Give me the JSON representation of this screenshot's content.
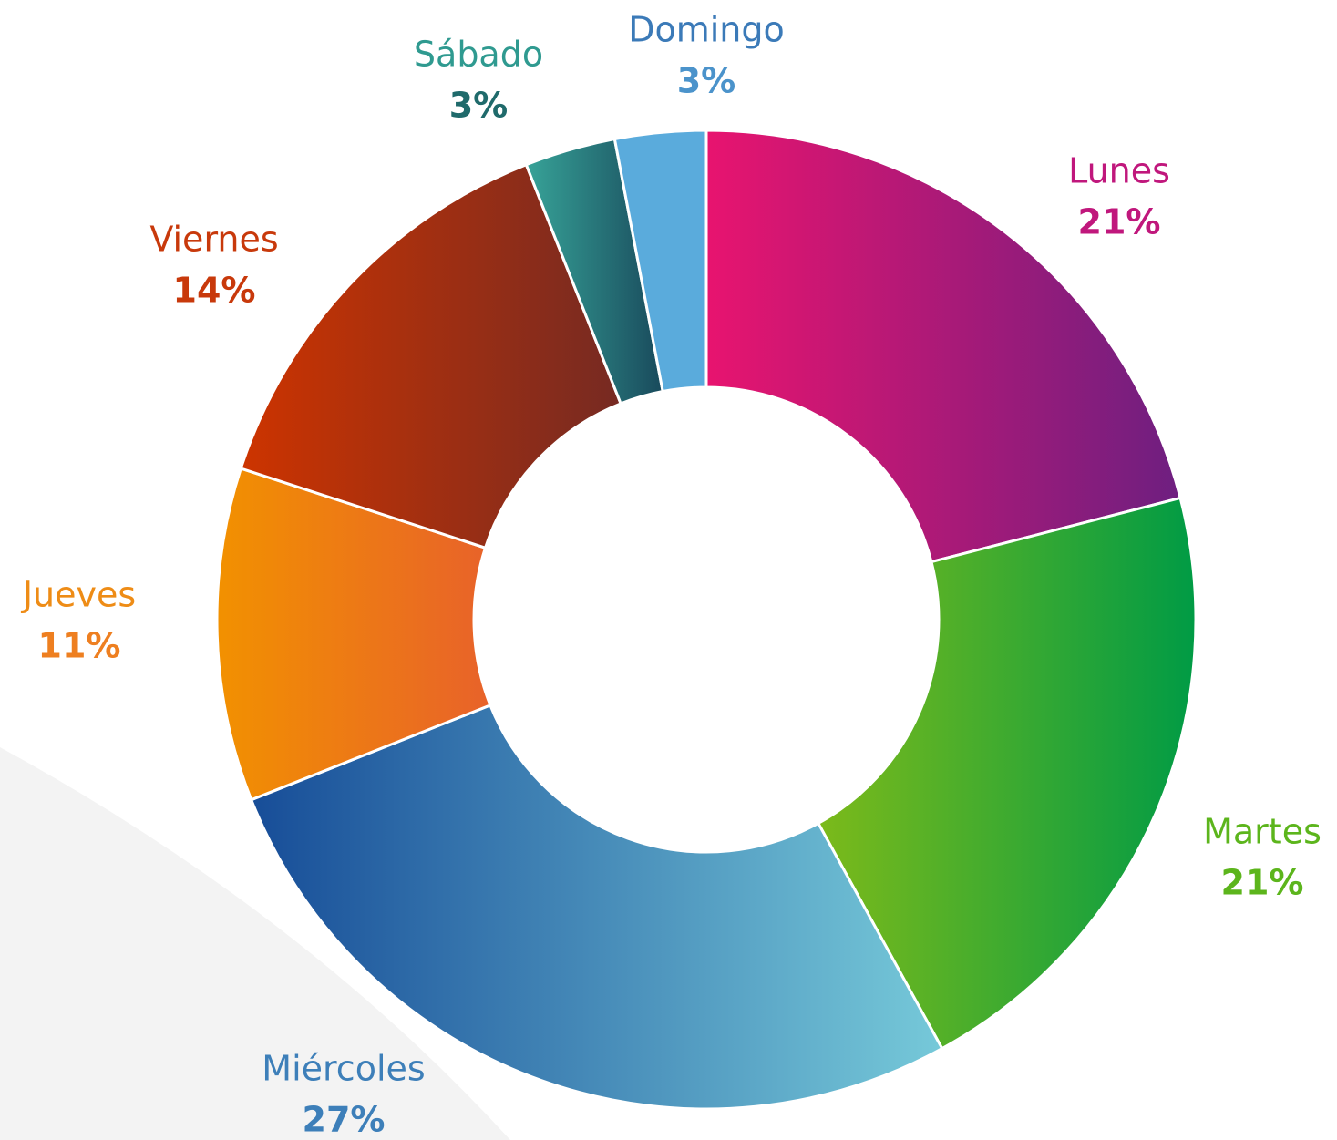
{
  "chart_data": {
    "type": "donut",
    "categories": [
      "Lunes",
      "Martes",
      "Miércoles",
      "Jueves",
      "Viernes",
      "Sábado",
      "Domingo"
    ],
    "values": [
      21,
      21,
      27,
      11,
      14,
      3,
      3
    ],
    "value_labels": [
      "21%",
      "21%",
      "27%",
      "11%",
      "14%",
      "3%",
      "3%"
    ],
    "colors": [
      [
        "#e8146f",
        "#6e1f80"
      ],
      [
        "#7cba1a",
        "#009b45"
      ],
      [
        "#174d98",
        "#76c9d9"
      ],
      [
        "#f29100",
        "#e8622a"
      ],
      [
        "#cd3400",
        "#762a22"
      ],
      [
        "#37a398",
        "#194a5c"
      ],
      [
        "#5aabdc",
        "#5aabdc"
      ]
    ],
    "label_colors": [
      [
        "#c0177c",
        "#c0177c"
      ],
      [
        "#5cb51c",
        "#5cb51c"
      ],
      [
        "#3d7fb9",
        "#3d7fb9"
      ],
      [
        "#ee8c16",
        "#ee7f20"
      ],
      [
        "#c8390b",
        "#c8390b"
      ],
      [
        "#2f9a90",
        "#1f6a6b"
      ],
      [
        "#3b7ab8",
        "#4b93cb"
      ]
    ]
  }
}
